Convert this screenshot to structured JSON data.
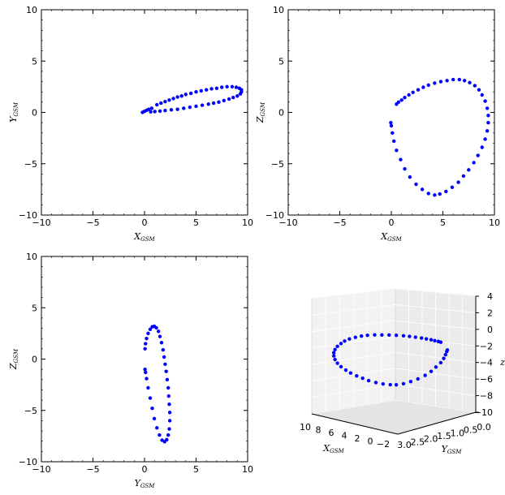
{
  "colors": {
    "marker": "#0000ff",
    "frame": "#000000",
    "pane": "#f2f2f2",
    "grid": "#e6e6e6"
  },
  "chart_data": [
    {
      "type": "scatter",
      "panel": "top-left",
      "xlabel": {
        "main": "X",
        "sub": "GSM"
      },
      "ylabel": {
        "main": "Y",
        "sub": "GSM"
      },
      "xlim": [
        -10,
        10
      ],
      "ylim": [
        -10,
        10
      ],
      "xticks": [
        -10,
        -5,
        0,
        5,
        10
      ],
      "yticks": [
        -10,
        -5,
        0,
        5,
        10
      ],
      "tick_labels": [
        "−10",
        "−5",
        "0",
        "5",
        "10"
      ],
      "grid": false,
      "points": [
        [
          -0.2,
          0.0
        ],
        [
          0.0,
          0.1
        ],
        [
          0.2,
          0.2
        ],
        [
          0.4,
          0.3
        ],
        [
          0.7,
          0.4
        ],
        [
          1.2,
          0.75
        ],
        [
          1.6,
          0.9
        ],
        [
          2.0,
          1.05
        ],
        [
          2.4,
          1.2
        ],
        [
          2.8,
          1.35
        ],
        [
          3.2,
          1.5
        ],
        [
          3.6,
          1.6
        ],
        [
          4.0,
          1.75
        ],
        [
          4.5,
          1.85
        ],
        [
          5.0,
          2.0
        ],
        [
          5.5,
          2.1
        ],
        [
          6.0,
          2.2
        ],
        [
          6.5,
          2.3
        ],
        [
          7.0,
          2.35
        ],
        [
          7.5,
          2.45
        ],
        [
          8.0,
          2.5
        ],
        [
          8.5,
          2.5
        ],
        [
          8.9,
          2.45
        ],
        [
          9.2,
          2.35
        ],
        [
          9.4,
          2.2
        ],
        [
          9.4,
          2.0
        ],
        [
          9.3,
          1.8
        ],
        [
          9.0,
          1.6
        ],
        [
          8.6,
          1.45
        ],
        [
          8.2,
          1.3
        ],
        [
          7.7,
          1.15
        ],
        [
          7.2,
          1.0
        ],
        [
          6.7,
          0.9
        ],
        [
          6.2,
          0.8
        ],
        [
          5.6,
          0.7
        ],
        [
          5.0,
          0.6
        ],
        [
          4.4,
          0.5
        ],
        [
          3.8,
          0.4
        ],
        [
          3.2,
          0.3
        ],
        [
          2.6,
          0.25
        ],
        [
          2.0,
          0.18
        ],
        [
          1.5,
          0.12
        ],
        [
          1.0,
          0.08
        ],
        [
          0.6,
          0.05
        ]
      ]
    },
    {
      "type": "scatter",
      "panel": "top-right",
      "xlabel": {
        "main": "X",
        "sub": "GSM"
      },
      "ylabel": {
        "main": "Z",
        "sub": "GSM"
      },
      "xlim": [
        -10,
        10
      ],
      "ylim": [
        -10,
        10
      ],
      "xticks": [
        -10,
        -5,
        0,
        5,
        10
      ],
      "yticks": [
        -10,
        -5,
        0,
        5,
        10
      ],
      "tick_labels": [
        "−10",
        "−5",
        "0",
        "5",
        "10"
      ],
      "grid": false,
      "points": [
        [
          0.5,
          0.8
        ],
        [
          0.7,
          1.0
        ],
        [
          1.0,
          1.2
        ],
        [
          1.3,
          1.45
        ],
        [
          1.7,
          1.7
        ],
        [
          2.1,
          1.95
        ],
        [
          2.6,
          2.2
        ],
        [
          3.1,
          2.45
        ],
        [
          3.6,
          2.65
        ],
        [
          4.2,
          2.85
        ],
        [
          4.8,
          3.0
        ],
        [
          5.4,
          3.1
        ],
        [
          6.0,
          3.2
        ],
        [
          6.6,
          3.2
        ],
        [
          7.1,
          3.1
        ],
        [
          7.6,
          2.9
        ],
        [
          8.1,
          2.6
        ],
        [
          8.5,
          2.2
        ],
        [
          8.8,
          1.7
        ],
        [
          9.1,
          1.1
        ],
        [
          9.3,
          0.4
        ],
        [
          9.4,
          -0.3
        ],
        [
          9.4,
          -1.0
        ],
        [
          9.3,
          -1.8
        ],
        [
          9.1,
          -2.6
        ],
        [
          8.8,
          -3.4
        ],
        [
          8.4,
          -4.2
        ],
        [
          8.0,
          -4.9
        ],
        [
          7.5,
          -5.6
        ],
        [
          7.0,
          -6.2
        ],
        [
          6.5,
          -6.8
        ],
        [
          5.9,
          -7.3
        ],
        [
          5.3,
          -7.7
        ],
        [
          4.7,
          -7.95
        ],
        [
          4.2,
          -8.05
        ],
        [
          3.6,
          -7.9
        ],
        [
          3.0,
          -7.5
        ],
        [
          2.4,
          -7.0
        ],
        [
          1.8,
          -6.3
        ],
        [
          1.3,
          -5.5
        ],
        [
          0.9,
          -4.6
        ],
        [
          0.5,
          -3.7
        ],
        [
          0.25,
          -2.8
        ],
        [
          0.1,
          -2.0
        ],
        [
          0.0,
          -1.3
        ],
        [
          -0.05,
          -1.0
        ]
      ]
    },
    {
      "type": "scatter",
      "panel": "bottom-left",
      "xlabel": {
        "main": "Y",
        "sub": "GSM"
      },
      "ylabel": {
        "main": "Z",
        "sub": "GSM"
      },
      "xlim": [
        -10,
        10
      ],
      "ylim": [
        -10,
        10
      ],
      "xticks": [
        -10,
        -5,
        0,
        5,
        10
      ],
      "yticks": [
        -10,
        -5,
        0,
        5,
        10
      ],
      "tick_labels": [
        "−10",
        "−5",
        "0",
        "5",
        "10"
      ],
      "grid": false,
      "points": [
        [
          0.05,
          1.0
        ],
        [
          0.1,
          1.5
        ],
        [
          0.2,
          2.0
        ],
        [
          0.35,
          2.5
        ],
        [
          0.55,
          2.9
        ],
        [
          0.75,
          3.15
        ],
        [
          0.95,
          3.2
        ],
        [
          1.15,
          3.05
        ],
        [
          1.35,
          2.7
        ],
        [
          1.5,
          2.2
        ],
        [
          1.65,
          1.6
        ],
        [
          1.8,
          0.9
        ],
        [
          1.9,
          0.2
        ],
        [
          2.0,
          -0.5
        ],
        [
          2.1,
          -1.2
        ],
        [
          2.2,
          -2.0
        ],
        [
          2.3,
          -2.8
        ],
        [
          2.35,
          -3.6
        ],
        [
          2.4,
          -4.4
        ],
        [
          2.45,
          -5.2
        ],
        [
          2.45,
          -6.0
        ],
        [
          2.4,
          -6.8
        ],
        [
          2.3,
          -7.4
        ],
        [
          2.15,
          -7.85
        ],
        [
          1.95,
          -8.05
        ],
        [
          1.7,
          -7.9
        ],
        [
          1.45,
          -7.4
        ],
        [
          1.2,
          -6.7
        ],
        [
          0.95,
          -5.8
        ],
        [
          0.75,
          -4.8
        ],
        [
          0.55,
          -3.8
        ],
        [
          0.35,
          -2.8
        ],
        [
          0.2,
          -1.9
        ],
        [
          0.1,
          -1.3
        ],
        [
          0.05,
          -1.0
        ]
      ]
    },
    {
      "type": "scatter3d",
      "panel": "bottom-right",
      "xlabel": {
        "main": "X",
        "sub": "GSM"
      },
      "ylabel": {
        "main": "Y",
        "sub": "GSM"
      },
      "zlabel": "z",
      "xticks": [
        "10",
        "8",
        "6",
        "4",
        "2",
        "0",
        "−2"
      ],
      "yticks": [
        "3.0",
        "2.5",
        "2.0",
        "1.5",
        "1.0",
        "0.5",
        "0.0"
      ],
      "zticks": [
        "4",
        "2",
        "0",
        "−2",
        "−4",
        "−6",
        "−8",
        "−10"
      ],
      "grid": true
    }
  ]
}
